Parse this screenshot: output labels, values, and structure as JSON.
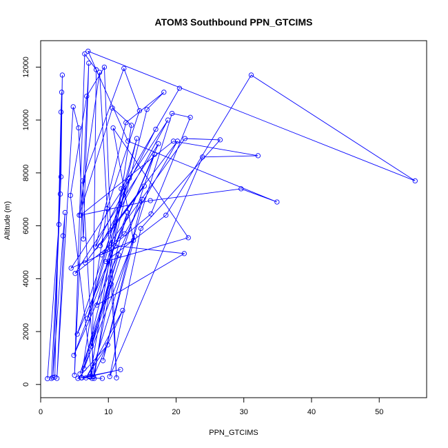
{
  "chart_data": {
    "type": "line",
    "title": "ATOM3 Southbound PPN_GTCIMS",
    "xlabel": "PPN_GTCIMS",
    "ylabel": "Altitude (m)",
    "xlim": [
      0,
      57
    ],
    "ylim": [
      -500,
      13000
    ],
    "xticks": [
      0,
      10,
      20,
      30,
      40,
      50
    ],
    "yticks": [
      0,
      2000,
      4000,
      6000,
      8000,
      10000,
      12000
    ],
    "grid": false,
    "legend": "none",
    "markers": "open-circle",
    "series_color": "#0000ff",
    "series": [
      {
        "x": [
          1.0,
          2.7,
          3.1,
          3.0,
          2.1,
          1.6,
          2.9,
          3.2,
          3.0,
          1.8,
          3.3,
          3.6,
          2.4,
          4.8,
          5.6,
          6.3,
          7.1,
          5.0,
          6.5,
          8.2,
          7.6,
          4.4,
          6.8,
          9.4,
          11.2,
          8.7,
          5.7,
          10.6,
          13.4,
          7.9,
          6.2,
          12.3,
          14.6,
          9.8,
          6.0,
          15.7,
          18.2,
          12.6,
          8.1,
          17.0,
          20.5,
          11.9,
          7.3,
          19.4,
          22.1,
          16.3,
          9.0,
          21.3,
          26.5,
          14.8,
          10.2,
          23.9,
          32.1,
          19.6,
          5.9,
          16.2,
          29.6,
          34.9,
          12.9,
          7.0,
          55.3,
          31.1,
          18.5,
          9.6,
          21.8,
          10.7,
          13.7,
          4.5,
          18.8,
          8.8,
          15.3,
          6.6,
          20.2,
          12.4,
          5.1,
          17.4,
          11.0,
          21.2,
          8.3,
          14.2,
          6.9,
          13.1,
          5.4,
          16.8,
          7.5,
          12.8,
          4.9,
          15.0,
          9.2,
          13.9,
          6.4,
          11.5,
          5.8,
          10.4,
          7.8,
          12.1,
          6.7,
          9.9,
          5.5,
          11.8,
          7.2,
          6.1,
          9.1
        ],
        "y": [
          220,
          6050,
          11050,
          10300,
          280,
          230,
          7200,
          11700,
          7850,
          260,
          5620,
          6500,
          230,
          10500,
          9700,
          5500,
          12150,
          350,
          12500,
          11900,
          230,
          7150,
          10900,
          12000,
          250,
          11800,
          6400,
          10450,
          9800,
          230,
          7700,
          11950,
          10350,
          6650,
          250,
          10400,
          11050,
          9900,
          5200,
          9650,
          11200,
          7400,
          280,
          10250,
          10100,
          6450,
          4900,
          9300,
          9250,
          5900,
          300,
          8600,
          8650,
          9200,
          6400,
          6950,
          7400,
          6900,
          9200,
          12600,
          7700,
          11700,
          6400,
          4650,
          5550,
          9700,
          5450,
          4400,
          10000,
          5250,
          7500,
          4600,
          9200,
          5700,
          4200,
          9100,
          5250,
          4950,
          3000,
          9300,
          2500,
          7800,
          1900,
          8700,
          1450,
          6500,
          1100,
          7000,
          900,
          5600,
          600,
          4900,
          400,
          3800,
          300,
          2800,
          250,
          1500,
          230,
          560,
          300,
          250,
          230
        ]
      }
    ]
  }
}
